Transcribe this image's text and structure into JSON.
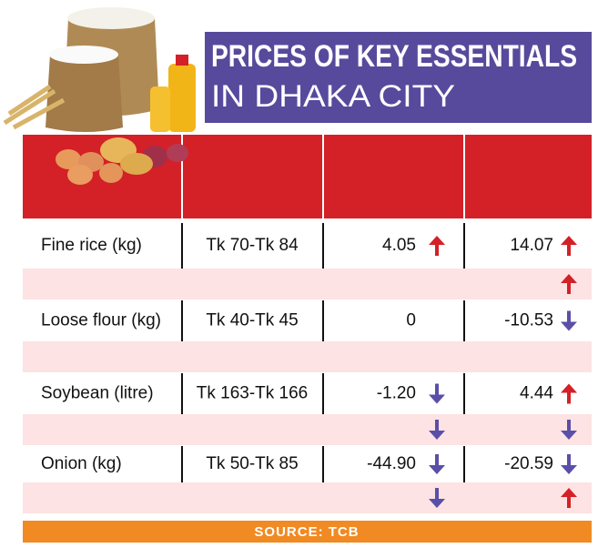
{
  "header": {
    "title_line1": "PRICES OF KEY ESSENTIALS",
    "title_line2": "IN DHAKA CITY"
  },
  "table": {
    "rows": [
      {
        "item": "Fine rice (kg)",
        "price": "Tk 70-Tk 84",
        "change1": "4.05",
        "change2": "14.07",
        "arrows": [
          "up",
          "up"
        ],
        "sub_arrows": [
          null,
          "up"
        ]
      },
      {
        "item": "Loose flour (kg)",
        "price": "Tk 40-Tk 45",
        "change1": "0",
        "change2": "-10.53",
        "arrows": [
          null,
          "down"
        ],
        "sub_arrows": [
          null,
          null
        ]
      },
      {
        "item": "Soybean (litre)",
        "price": "Tk 163-Tk 166",
        "change1": "-1.20",
        "change2": "4.44",
        "arrows": [
          "down",
          "up"
        ],
        "sub_arrows": [
          "down",
          "down"
        ]
      },
      {
        "item": "Onion (kg)",
        "price": "Tk 50-Tk 85",
        "change1": "-44.90",
        "change2": "-20.59",
        "arrows": [
          "down",
          "down"
        ],
        "sub_arrows": [
          "down",
          "up"
        ]
      }
    ]
  },
  "footer": {
    "source": "SOURCE: TCB"
  }
}
